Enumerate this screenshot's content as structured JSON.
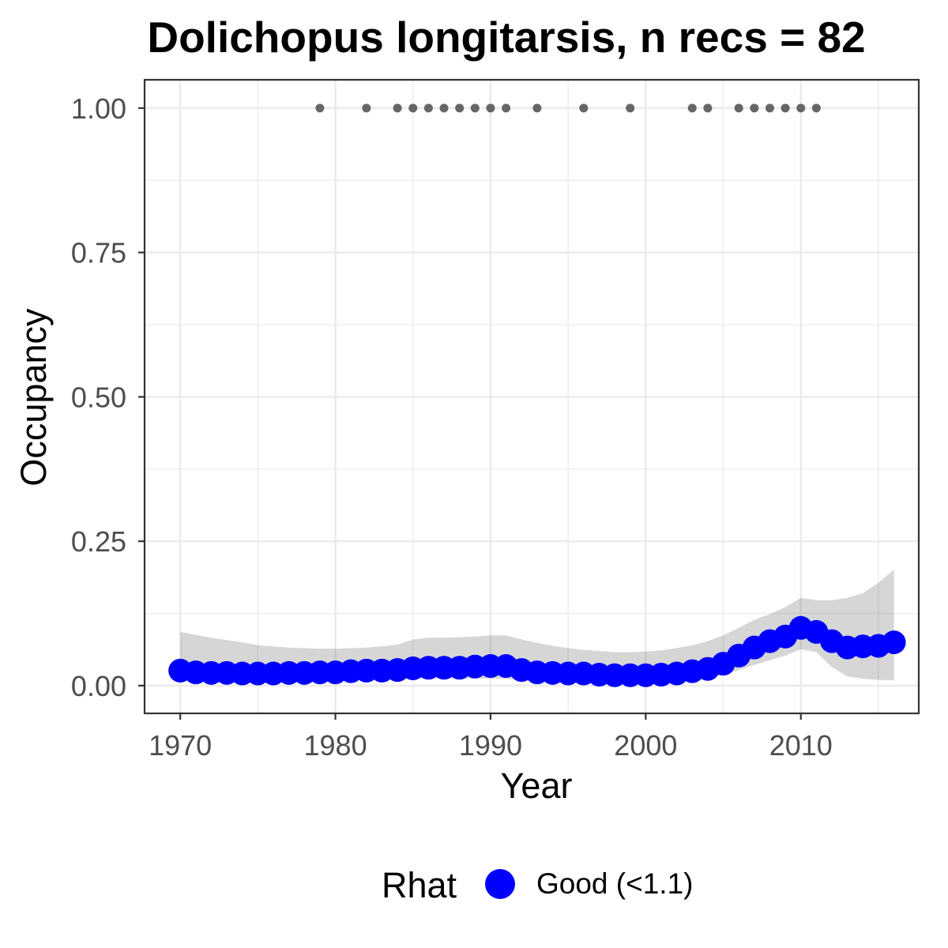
{
  "chart_data": {
    "type": "scatter",
    "title": "Dolichopus longitarsis, n recs = 82",
    "xlabel": "Year",
    "ylabel": "Occupancy",
    "xlim": [
      1967.7,
      2017.6
    ],
    "ylim": [
      -0.048,
      1.049
    ],
    "x_ticks": [
      1970,
      1980,
      1990,
      2000,
      2010
    ],
    "x_tick_labels": [
      "1970",
      "1980",
      "1990",
      "2000",
      "2010"
    ],
    "x_minor_ticks": [
      1975,
      1985,
      1995,
      2005,
      2015
    ],
    "y_ticks": [
      0,
      0.25,
      0.5,
      0.75,
      1
    ],
    "y_tick_labels": [
      "0.00",
      "0.25",
      "0.50",
      "0.75",
      "1.00"
    ],
    "y_minor_ticks": [
      0.125,
      0.375,
      0.625,
      0.875
    ],
    "grid": true,
    "legend": {
      "title": "Rhat",
      "position": "bottom",
      "entries": [
        {
          "label": "Good (<1.1)",
          "color": "#0000FF"
        }
      ]
    },
    "series": [
      {
        "color": "#0000FF",
        "x": [
          1970,
          1971,
          1972,
          1973,
          1974,
          1975,
          1976,
          1977,
          1978,
          1979,
          1980,
          1981,
          1982,
          1983,
          1984,
          1985,
          1986,
          1987,
          1988,
          1989,
          1990,
          1991,
          1992,
          1993,
          1994,
          1995,
          1996,
          1997,
          1998,
          1999,
          2000,
          2001,
          2002,
          2003,
          2004,
          2005,
          2006,
          2007,
          2008,
          2009,
          2010,
          2011,
          2012,
          2013,
          2014,
          2015,
          2016
        ],
        "y": [
          0.026,
          0.023,
          0.022,
          0.022,
          0.021,
          0.021,
          0.021,
          0.022,
          0.022,
          0.023,
          0.023,
          0.025,
          0.026,
          0.026,
          0.027,
          0.03,
          0.031,
          0.031,
          0.031,
          0.033,
          0.034,
          0.034,
          0.027,
          0.023,
          0.022,
          0.021,
          0.021,
          0.019,
          0.018,
          0.018,
          0.018,
          0.019,
          0.021,
          0.025,
          0.029,
          0.038,
          0.052,
          0.066,
          0.077,
          0.085,
          0.1,
          0.093,
          0.077,
          0.066,
          0.068,
          0.069,
          0.075
        ]
      }
    ],
    "confidence_band": {
      "color": "#333333",
      "x": [
        1970,
        1971,
        1972,
        1973,
        1974,
        1975,
        1976,
        1977,
        1978,
        1979,
        1980,
        1981,
        1982,
        1983,
        1984,
        1985,
        1986,
        1987,
        1988,
        1989,
        1990,
        1991,
        1992,
        1993,
        1994,
        1995,
        1996,
        1997,
        1998,
        1999,
        2000,
        2001,
        2002,
        2003,
        2004,
        2005,
        2006,
        2007,
        2008,
        2009,
        2010,
        2011,
        2012,
        2013,
        2014,
        2015,
        2016
      ],
      "lower": [
        0.008,
        0.009,
        0.009,
        0.009,
        0.009,
        0.009,
        0.009,
        0.009,
        0.009,
        0.01,
        0.01,
        0.01,
        0.011,
        0.011,
        0.011,
        0.012,
        0.012,
        0.012,
        0.012,
        0.012,
        0.012,
        0.012,
        0.01,
        0.008,
        0.008,
        0.007,
        0.007,
        0.006,
        0.006,
        0.006,
        0.006,
        0.007,
        0.008,
        0.01,
        0.013,
        0.018,
        0.027,
        0.036,
        0.044,
        0.052,
        0.063,
        0.058,
        0.032,
        0.016,
        0.012,
        0.01,
        0.009
      ],
      "upper": [
        0.093,
        0.088,
        0.083,
        0.079,
        0.075,
        0.07,
        0.068,
        0.066,
        0.065,
        0.064,
        0.064,
        0.065,
        0.066,
        0.068,
        0.071,
        0.08,
        0.083,
        0.083,
        0.084,
        0.085,
        0.087,
        0.087,
        0.08,
        0.074,
        0.069,
        0.065,
        0.062,
        0.06,
        0.058,
        0.058,
        0.059,
        0.061,
        0.065,
        0.07,
        0.077,
        0.087,
        0.1,
        0.114,
        0.124,
        0.136,
        0.152,
        0.148,
        0.148,
        0.152,
        0.16,
        0.178,
        0.201
      ]
    },
    "records": {
      "color": "#666666",
      "x": [
        1979,
        1982,
        1984,
        1985,
        1986,
        1987,
        1988,
        1989,
        1990,
        1991,
        1993,
        1996,
        1999,
        2003,
        2004,
        2006,
        2007,
        2008,
        2009,
        2010,
        2011
      ],
      "y": [
        1,
        1,
        1,
        1,
        1,
        1,
        1,
        1,
        1,
        1,
        1,
        1,
        1,
        1,
        1,
        1,
        1,
        1,
        1,
        1,
        1
      ]
    }
  }
}
